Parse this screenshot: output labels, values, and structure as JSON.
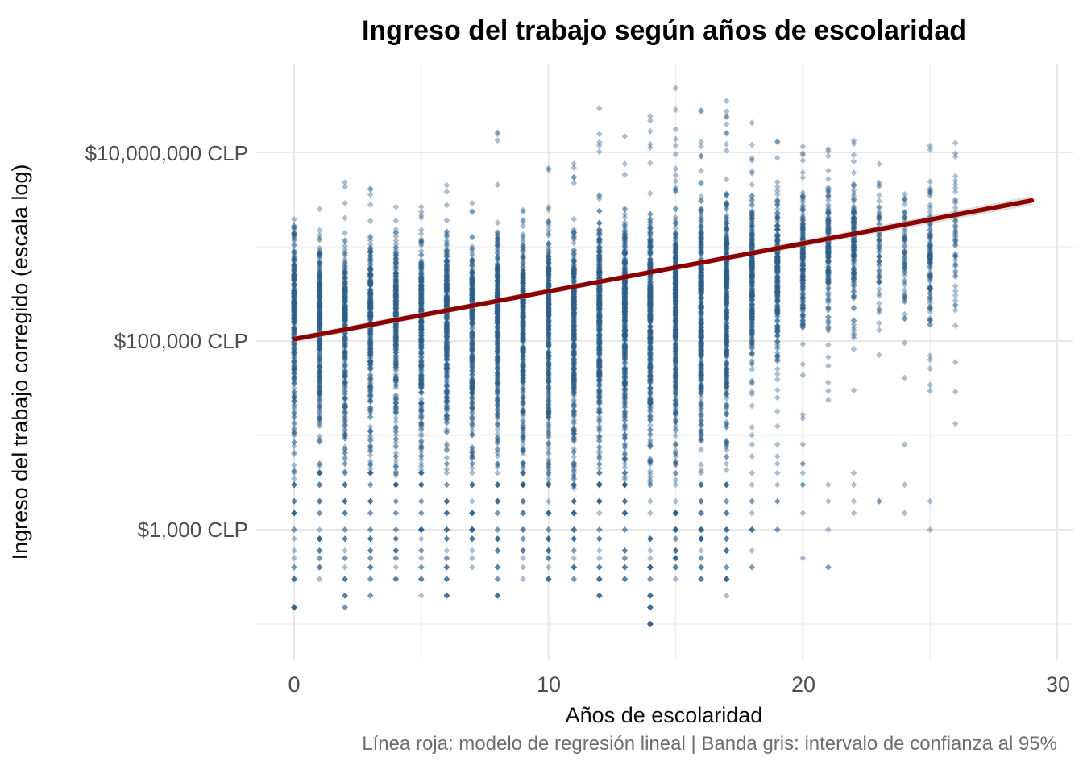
{
  "title": "Ingreso del trabajo según años de escolaridad",
  "caption": "Línea roja: modelo de regresión lineal | Banda gris: intervalo de confianza al 95%",
  "colors": {
    "point": "#2C5F8A",
    "point_opacity": 0.4,
    "regression_line": "#8B0000",
    "confidence_band": "#b3b3b3",
    "grid_major": "#e8e8e8",
    "grid_minor": "#f0f0f0",
    "tick_text": "#4d4d4d",
    "caption_text": "#6e6e6e",
    "background": "#ffffff"
  },
  "chart_data": {
    "type": "scatter",
    "title": "Ingreso del trabajo según años de escolaridad",
    "xlabel": "Años de escolaridad",
    "ylabel": "Ingreso del trabajo corregido (escala log)",
    "caption": "Línea roja: modelo de regresión lineal | Banda gris: intervalo de confianza al 95%",
    "y_scale": "log10",
    "x_ticks": [
      {
        "label": "0",
        "value": 0
      },
      {
        "label": "10",
        "value": 10
      },
      {
        "label": "20",
        "value": 20
      },
      {
        "label": "30",
        "value": 30
      }
    ],
    "y_ticks": [
      {
        "label": "$10,000,000 CLP",
        "value": 10000000,
        "log10": 7
      },
      {
        "label": "$100,000 CLP",
        "value": 100000,
        "log10": 5
      },
      {
        "label": "$1,000 CLP",
        "value": 1000,
        "log10": 3
      }
    ],
    "grid": {
      "x_major": [
        0,
        10,
        20,
        30
      ],
      "x_minor": [
        5,
        15,
        25
      ],
      "y_major_log10": [
        3,
        5,
        7
      ],
      "y_minor_log10": [
        2,
        4,
        6
      ]
    },
    "x_range": [
      -1.5,
      30.6
    ],
    "y_log10_range": [
      1.7,
      7.9
    ],
    "regression_line": {
      "x0": 0,
      "y0_log10": 5.02,
      "y0_clp": 105000,
      "x1": 29,
      "y1_log10": 6.49,
      "y1_clp": 3090000,
      "meaning": "modelo de regresión lineal"
    },
    "confidence_band": {
      "meaning": "intervalo de confianza al 95%",
      "half_width_log10_at_x0": 0.035,
      "half_width_log10_mid": 0.025,
      "half_width_log10_at_x1": 0.05
    },
    "points_model": {
      "note": "Thousands of semi-transparent diamond points stacked in vertical strips at integer years 0-26; per-strip log10(CLP) distribution summary read from plot.",
      "seed": 12345,
      "strips": [
        {
          "x": 0,
          "n": 300,
          "mu": 5.27,
          "su": 0.43,
          "sd": 0.83,
          "hi": 6.35,
          "lo": 2.1,
          "nhi": 4,
          "nlo": 30
        },
        {
          "x": 1,
          "n": 280,
          "mu": 5.22,
          "su": 0.37,
          "sd": 0.71,
          "hi": 6.6,
          "lo": 2.3,
          "nhi": 5,
          "nlo": 30
        },
        {
          "x": 2,
          "n": 280,
          "mu": 5.22,
          "su": 0.38,
          "sd": 0.73,
          "hi": 6.8,
          "lo": 2.2,
          "nhi": 6,
          "nlo": 32
        },
        {
          "x": 3,
          "n": 300,
          "mu": 5.25,
          "su": 0.39,
          "sd": 0.75,
          "hi": 6.8,
          "lo": 2.3,
          "nhi": 5,
          "nlo": 32
        },
        {
          "x": 4,
          "n": 300,
          "mu": 5.27,
          "su": 0.39,
          "sd": 0.75,
          "hi": 6.6,
          "lo": 2.4,
          "nhi": 5,
          "nlo": 30
        },
        {
          "x": 5,
          "n": 320,
          "mu": 5.25,
          "su": 0.39,
          "sd": 0.75,
          "hi": 6.78,
          "lo": 2.3,
          "nhi": 7,
          "nlo": 34
        },
        {
          "x": 6,
          "n": 320,
          "mu": 5.25,
          "su": 0.4,
          "sd": 0.77,
          "hi": 6.67,
          "lo": 2.2,
          "nhi": 6,
          "nlo": 34
        },
        {
          "x": 7,
          "n": 300,
          "mu": 5.24,
          "su": 0.38,
          "sd": 0.74,
          "hi": 6.5,
          "lo": 2.6,
          "nhi": 5,
          "nlo": 30
        },
        {
          "x": 8,
          "n": 320,
          "mu": 5.27,
          "su": 0.41,
          "sd": 0.78,
          "hi": 7.31,
          "lo": 2.3,
          "nhi": 8,
          "nlo": 34
        },
        {
          "x": 9,
          "n": 320,
          "mu": 5.25,
          "su": 0.4,
          "sd": 0.77,
          "hi": 6.57,
          "lo": 2.5,
          "nhi": 6,
          "nlo": 32
        },
        {
          "x": 10,
          "n": 340,
          "mu": 5.28,
          "su": 0.41,
          "sd": 0.78,
          "hi": 6.9,
          "lo": 2.4,
          "nhi": 8,
          "nlo": 34
        },
        {
          "x": 11,
          "n": 360,
          "mu": 5.27,
          "su": 0.41,
          "sd": 0.8,
          "hi": 6.9,
          "lo": 2.5,
          "nhi": 8,
          "nlo": 34
        },
        {
          "x": 12,
          "n": 400,
          "mu": 5.33,
          "su": 0.42,
          "sd": 0.81,
          "hi": 7.55,
          "lo": 2.3,
          "nhi": 12,
          "nlo": 36
        },
        {
          "x": 13,
          "n": 400,
          "mu": 5.33,
          "su": 0.41,
          "sd": 0.8,
          "hi": 7.2,
          "lo": 2.5,
          "nhi": 10,
          "nlo": 34
        },
        {
          "x": 14,
          "n": 400,
          "mu": 5.36,
          "su": 0.42,
          "sd": 0.81,
          "hi": 7.45,
          "lo": 1.9,
          "nhi": 12,
          "nlo": 36
        },
        {
          "x": 15,
          "n": 420,
          "mu": 5.42,
          "su": 0.43,
          "sd": 0.83,
          "hi": 7.71,
          "lo": 2.5,
          "nhi": 14,
          "nlo": 34
        },
        {
          "x": 16,
          "n": 400,
          "mu": 5.49,
          "su": 0.44,
          "sd": 0.84,
          "hi": 7.6,
          "lo": 2.4,
          "nhi": 12,
          "nlo": 32
        },
        {
          "x": 17,
          "n": 380,
          "mu": 5.55,
          "su": 0.44,
          "sd": 0.84,
          "hi": 7.6,
          "lo": 2.3,
          "nhi": 12,
          "nlo": 30
        },
        {
          "x": 18,
          "n": 280,
          "mu": 5.66,
          "su": 0.37,
          "sd": 0.53,
          "hi": 7.46,
          "lo": 2.6,
          "nhi": 10,
          "nlo": 20
        },
        {
          "x": 19,
          "n": 240,
          "mu": 5.77,
          "su": 0.33,
          "sd": 0.47,
          "hi": 7.4,
          "lo": 2.9,
          "nhi": 10,
          "nlo": 16
        },
        {
          "x": 20,
          "n": 200,
          "mu": 5.87,
          "su": 0.31,
          "sd": 0.43,
          "hi": 7.16,
          "lo": 2.6,
          "nhi": 8,
          "nlo": 12
        },
        {
          "x": 21,
          "n": 170,
          "mu": 5.92,
          "su": 0.31,
          "sd": 0.43,
          "hi": 7.12,
          "lo": 2.5,
          "nhi": 8,
          "nlo": 10
        },
        {
          "x": 22,
          "n": 150,
          "mu": 6.0,
          "su": 0.3,
          "sd": 0.42,
          "hi": 7.2,
          "lo": 3.2,
          "nhi": 8,
          "nlo": 8
        },
        {
          "x": 23,
          "n": 60,
          "mu": 6.01,
          "su": 0.26,
          "sd": 0.37,
          "hi": 6.9,
          "lo": 3.3,
          "nhi": 5,
          "nlo": 4
        },
        {
          "x": 24,
          "n": 60,
          "mu": 5.89,
          "su": 0.3,
          "sd": 0.42,
          "hi": 6.6,
          "lo": 3.0,
          "nhi": 4,
          "nlo": 5
        },
        {
          "x": 25,
          "n": 110,
          "mu": 5.87,
          "su": 0.34,
          "sd": 0.48,
          "hi": 7.2,
          "lo": 2.6,
          "nhi": 6,
          "nlo": 6
        },
        {
          "x": 26,
          "n": 50,
          "mu": 6.05,
          "su": 0.3,
          "sd": 0.42,
          "hi": 7.1,
          "lo": 3.4,
          "nhi": 5,
          "nlo": 3
        }
      ]
    },
    "legend_position": "none",
    "grid_on": true
  }
}
